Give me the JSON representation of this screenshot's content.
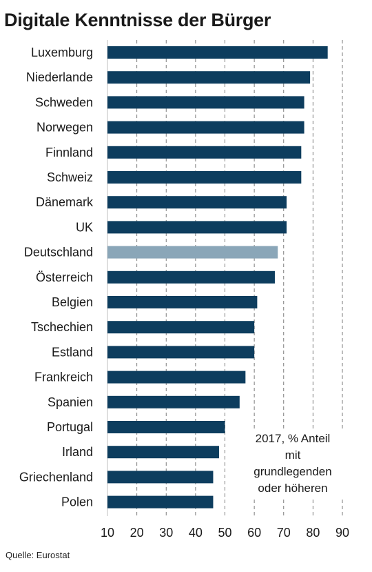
{
  "chart_data": {
    "type": "bar",
    "orientation": "horizontal",
    "title": "Digitale Kenntnisse der Bürger",
    "categories": [
      "Luxemburg",
      "Niederlande",
      "Schweden",
      "Norwegen",
      "Finnland",
      "Schweiz",
      "Dänemark",
      "UK",
      "Deutschland",
      "Österreich",
      "Belgien",
      "Tschechien",
      "Estland",
      "Frankreich",
      "Spanien",
      "Portugal",
      "Irland",
      "Griechenland",
      "Polen"
    ],
    "values": [
      85,
      79,
      77,
      77,
      76,
      76,
      71,
      71,
      68,
      67,
      61,
      60,
      60,
      57,
      55,
      50,
      48,
      46,
      46
    ],
    "highlight": "Deutschland",
    "xlim": [
      10,
      90
    ],
    "xticks": [
      "10",
      "20",
      "30",
      "40",
      "50",
      "60",
      "70",
      "80",
      "90"
    ],
    "grid": "vertical dashed",
    "colors": {
      "bar": "#0d3d5e",
      "highlight": "#8aa6b8",
      "grid": "#7a7a7a"
    },
    "annotation": [
      "2017, % Anteil",
      "mit",
      "grundlegenden",
      "oder höheren"
    ],
    "source": "Quelle: Eurostat"
  }
}
